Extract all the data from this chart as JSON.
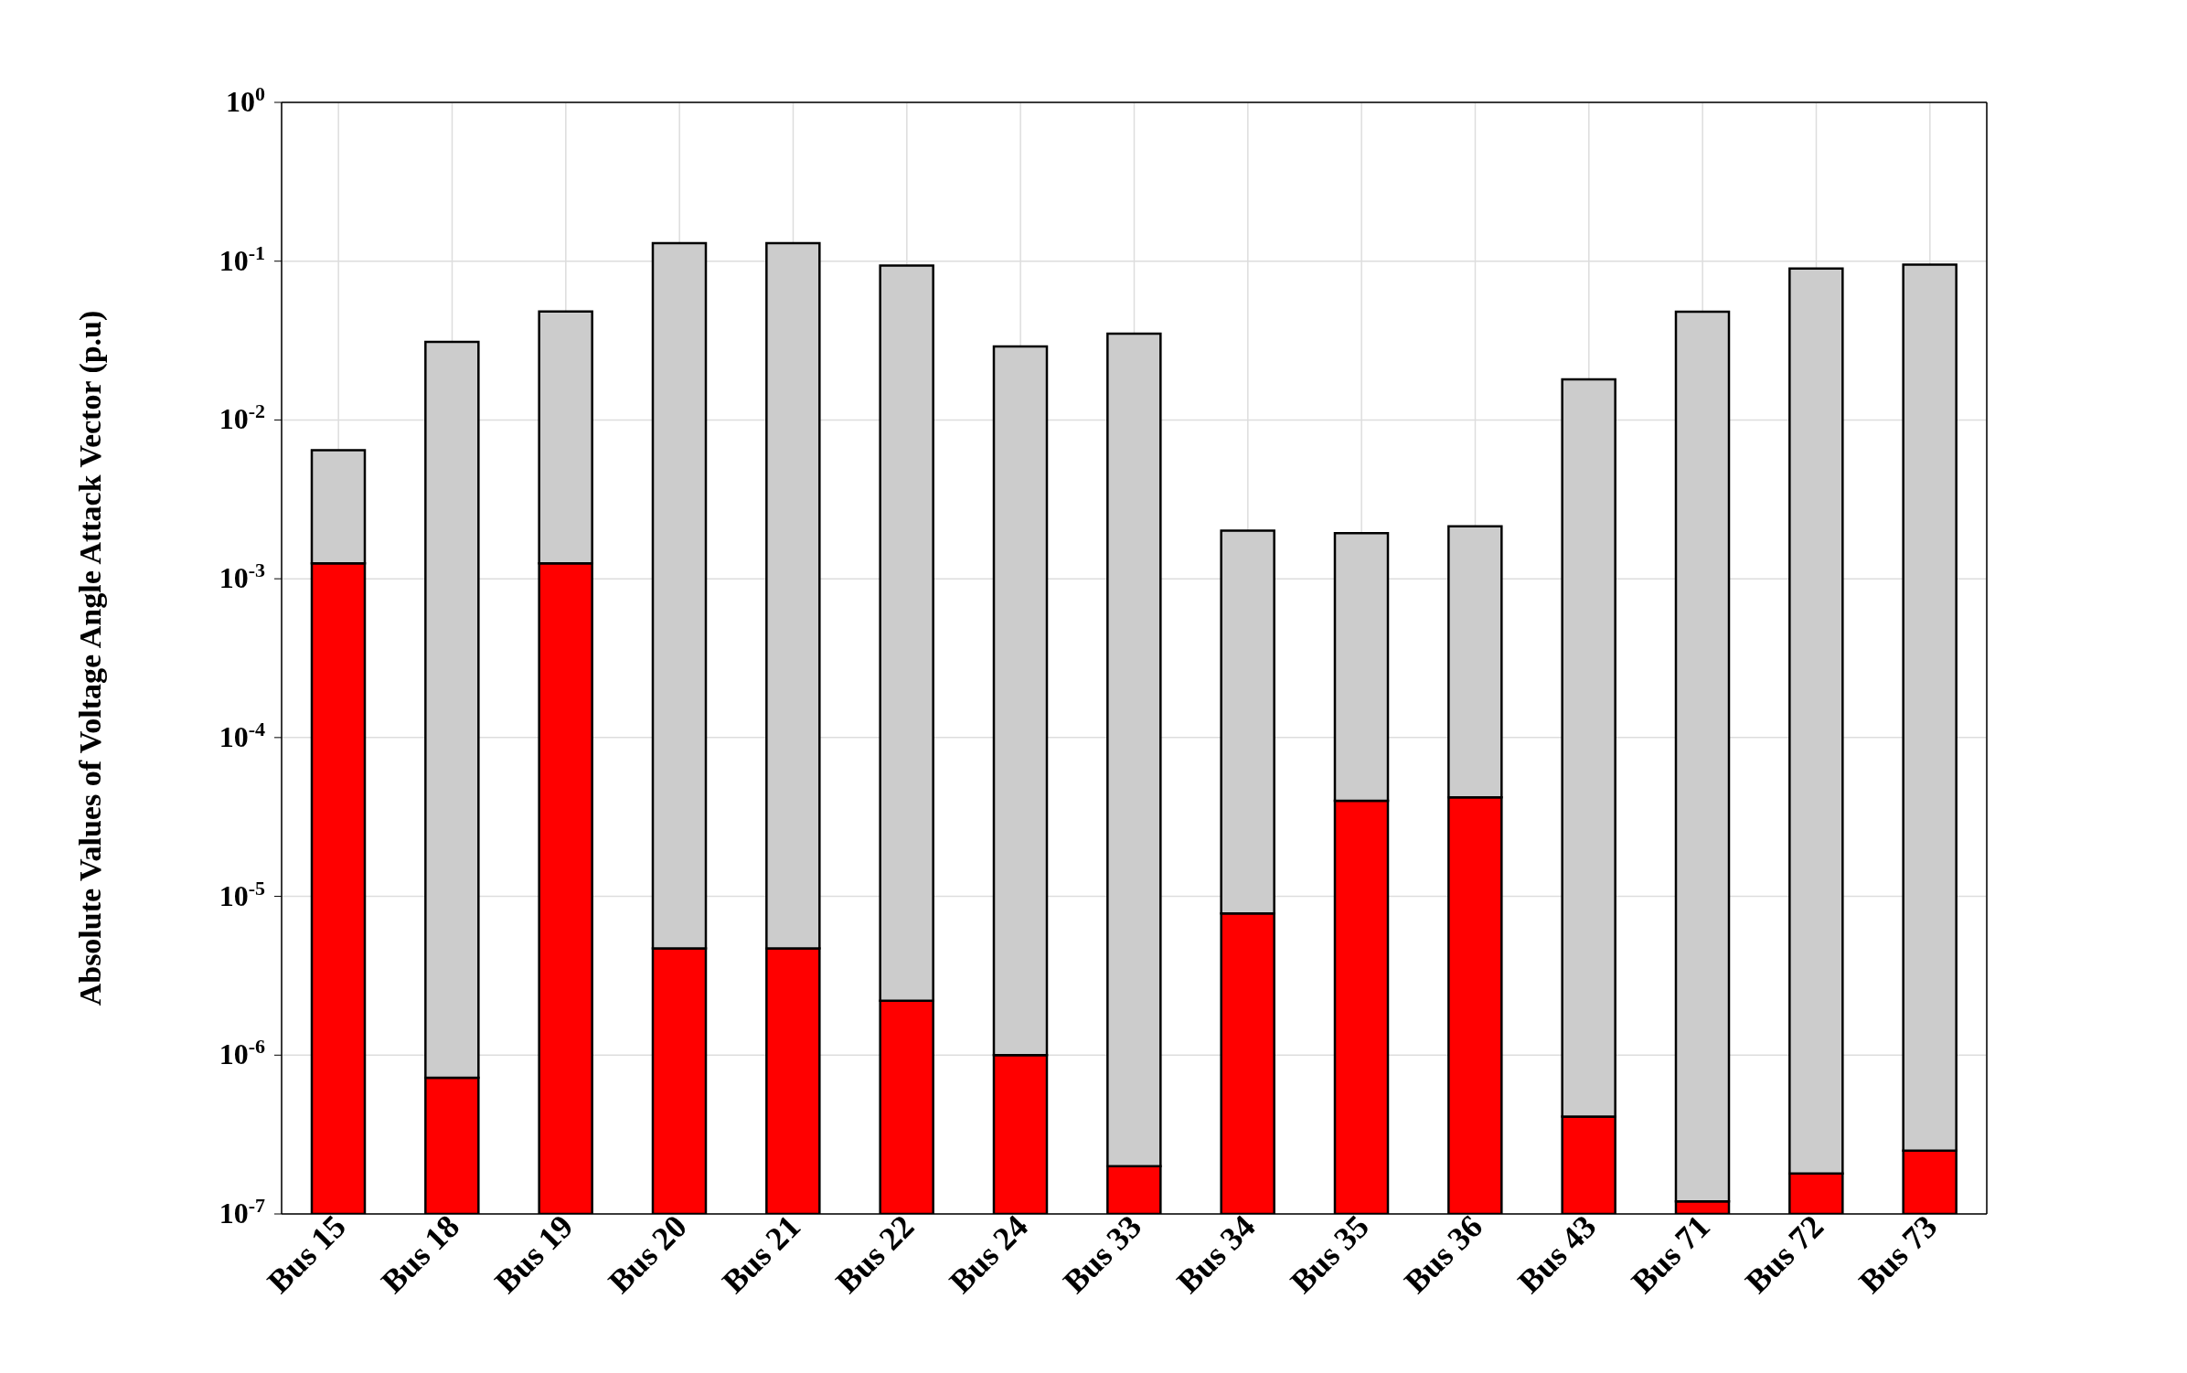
{
  "chart_data": {
    "type": "bar",
    "ylabel": "Absolute Values of Voltage Angle Attack Vector (p.u)",
    "categories": [
      "Bus 15",
      "Bus 18",
      "Bus 19",
      "Bus 20",
      "Bus 21",
      "Bus 22",
      "Bus 24",
      "Bus 33",
      "Bus 34",
      "Bus 35",
      "Bus 36",
      "Bus 43",
      "Bus 71",
      "Bus 72",
      "Bus 73"
    ],
    "series": [
      {
        "color": "#ff0000",
        "values": [
          0.00125,
          7.2e-07,
          0.00125,
          4.7e-06,
          4.7e-06,
          2.2e-06,
          1e-06,
          2e-07,
          7.8e-06,
          4e-05,
          4.2e-05,
          4.1e-07,
          1.2e-07,
          1.8e-07,
          2.5e-07
        ]
      },
      {
        "color": "#cccccc",
        "values": [
          0.0052,
          0.031,
          0.047,
          0.13,
          0.13,
          0.094,
          0.029,
          0.035,
          0.002,
          0.0019,
          0.0021,
          0.018,
          0.048,
          0.09,
          0.095
        ]
      }
    ],
    "stacked": true,
    "log": true,
    "ylim": [
      1e-07,
      1
    ],
    "yticks": [
      {
        "value": 1e-07,
        "label": "10$^{-7}$"
      },
      {
        "value": 1e-06,
        "label": "10$^{-6}$"
      },
      {
        "value": 1e-05,
        "label": "10$^{-5}$"
      },
      {
        "value": 0.0001,
        "label": "10$^{-4}$"
      },
      {
        "value": 0.001,
        "label": "10$^{-3}$"
      },
      {
        "value": 0.01,
        "label": "10$^{-2}$"
      },
      {
        "value": 0.1,
        "label": "10$^{-1}$"
      },
      {
        "value": 1,
        "label": "10$^{0}$"
      }
    ],
    "grid": true
  }
}
